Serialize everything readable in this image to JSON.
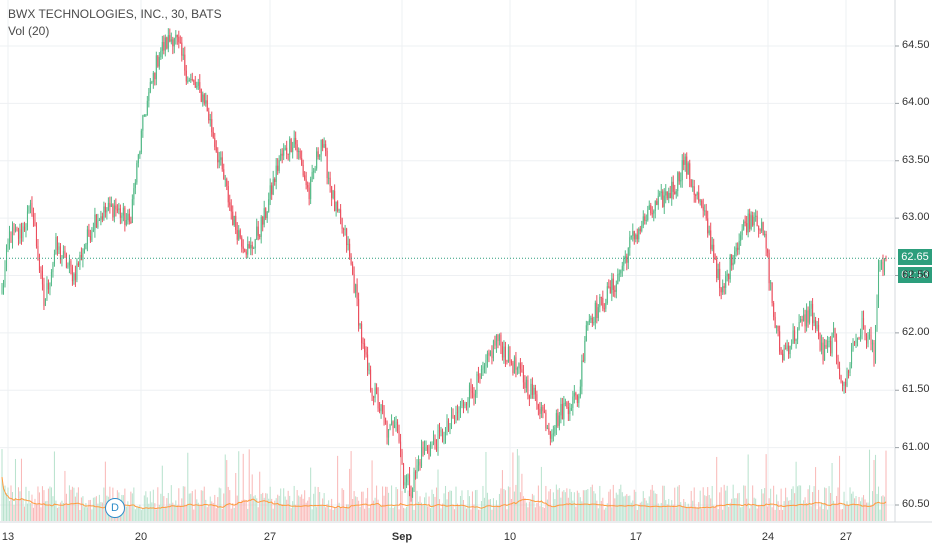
{
  "header": {
    "title": "BWX TECHNOLOGIES, INC., 30, BATS",
    "volume_label": "Vol (20)"
  },
  "colors": {
    "up": "#53b987",
    "down": "#eb4d5c",
    "vol_up": "#a9dcc3",
    "vol_down": "#f7a9a7",
    "vol_ma": "#ff9a3c",
    "last_price_line": "#2c9e7c",
    "grid": "#eef0f3",
    "axis_text": "#333333"
  },
  "price_axis": {
    "ticks": [
      "64.50",
      "64.00",
      "63.50",
      "63.00",
      "62.50",
      "62.00",
      "61.50",
      "61.00",
      "60.50"
    ],
    "last_price": "62.65",
    "countdown": "01:13"
  },
  "time_axis": {
    "ticks": [
      "13",
      "20",
      "27",
      "Sep",
      "10",
      "17",
      "24",
      "27"
    ]
  },
  "event_marker": "D",
  "chart_data": {
    "type": "candlestick",
    "title": "BWX TECHNOLOGIES, INC., 30, BATS",
    "interval": "30",
    "ylim": [
      60.45,
      64.85
    ],
    "last_price": 62.65,
    "keypoints_close": [
      [
        0,
        62.35
      ],
      [
        5,
        62.85
      ],
      [
        12,
        62.85
      ],
      [
        20,
        63.1
      ],
      [
        28,
        62.25
      ],
      [
        36,
        62.75
      ],
      [
        48,
        62.5
      ],
      [
        62,
        63.0
      ],
      [
        75,
        63.1
      ],
      [
        85,
        62.95
      ],
      [
        95,
        63.9
      ],
      [
        105,
        64.45
      ],
      [
        115,
        64.6
      ],
      [
        125,
        64.2
      ],
      [
        135,
        64.05
      ],
      [
        145,
        63.5
      ],
      [
        155,
        62.95
      ],
      [
        165,
        62.7
      ],
      [
        175,
        63.0
      ],
      [
        185,
        63.5
      ],
      [
        195,
        63.7
      ],
      [
        205,
        63.2
      ],
      [
        213,
        63.7
      ],
      [
        222,
        63.1
      ],
      [
        230,
        62.8
      ],
      [
        236,
        62.35
      ],
      [
        241,
        61.85
      ],
      [
        246,
        61.55
      ],
      [
        252,
        61.35
      ],
      [
        258,
        61.1
      ],
      [
        263,
        61.3
      ],
      [
        268,
        60.75
      ],
      [
        273,
        60.65
      ],
      [
        280,
        60.95
      ],
      [
        290,
        61.05
      ],
      [
        300,
        61.2
      ],
      [
        310,
        61.45
      ],
      [
        320,
        61.6
      ],
      [
        330,
        61.95
      ],
      [
        340,
        61.75
      ],
      [
        350,
        61.55
      ],
      [
        358,
        61.4
      ],
      [
        366,
        61.15
      ],
      [
        375,
        61.35
      ],
      [
        385,
        61.45
      ],
      [
        390,
        62.1
      ],
      [
        400,
        62.25
      ],
      [
        410,
        62.45
      ],
      [
        420,
        62.8
      ],
      [
        430,
        63.0
      ],
      [
        440,
        63.15
      ],
      [
        450,
        63.3
      ],
      [
        455,
        63.5
      ],
      [
        465,
        63.15
      ],
      [
        470,
        62.95
      ],
      [
        476,
        62.65
      ],
      [
        480,
        62.3
      ],
      [
        488,
        62.7
      ],
      [
        496,
        62.95
      ],
      [
        503,
        63.05
      ],
      [
        510,
        62.75
      ],
      [
        515,
        62.15
      ],
      [
        520,
        61.8
      ],
      [
        530,
        62.0
      ],
      [
        540,
        62.2
      ],
      [
        548,
        61.8
      ],
      [
        555,
        61.95
      ],
      [
        562,
        61.5
      ],
      [
        568,
        61.9
      ],
      [
        574,
        62.05
      ],
      [
        582,
        61.85
      ],
      [
        585,
        62.5
      ],
      [
        590,
        62.65
      ]
    ],
    "volume_ma_label": "Vol (20)"
  }
}
